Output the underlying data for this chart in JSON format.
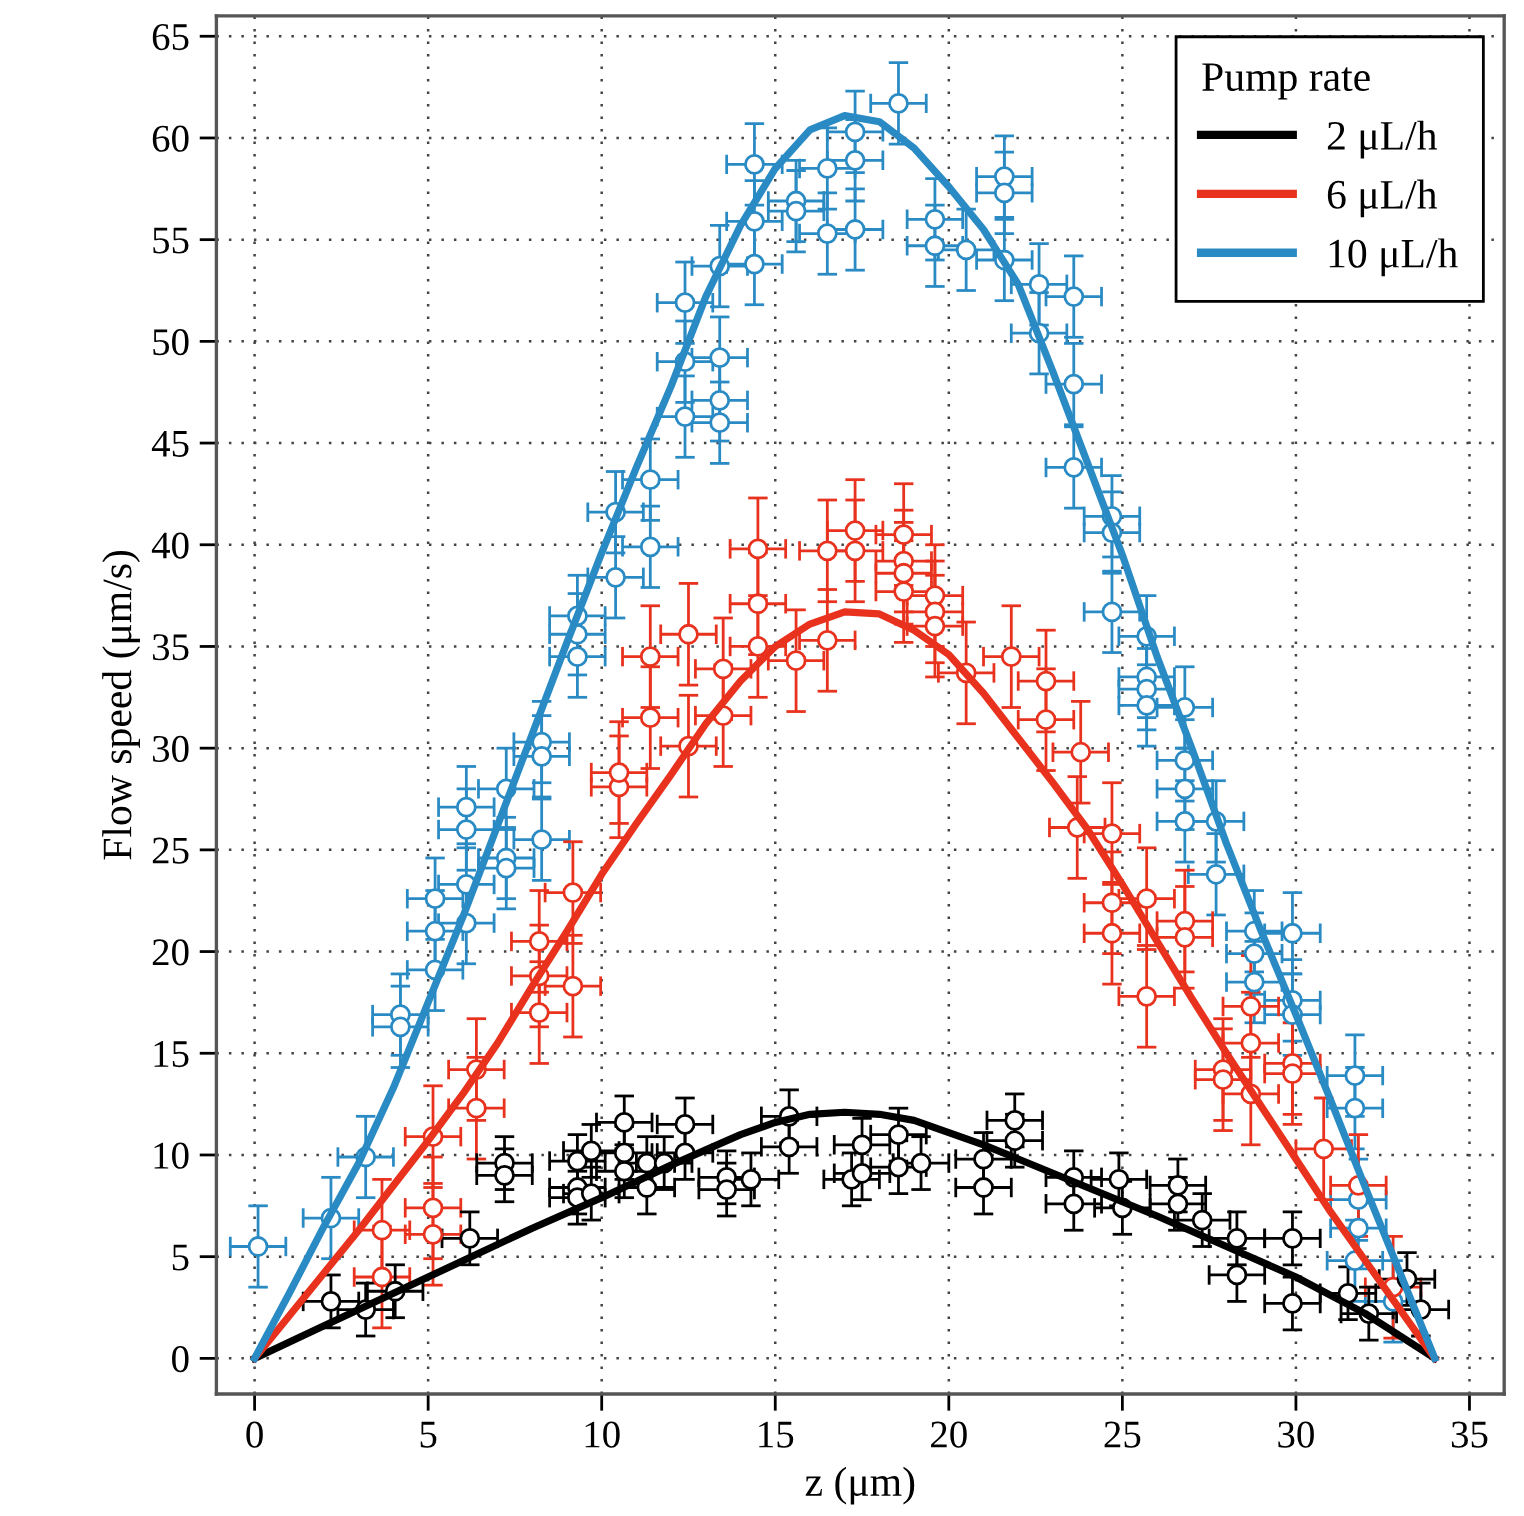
{
  "chart_data": {
    "type": "scatter",
    "xlabel": "z (μm)",
    "ylabel": "Flow speed (μm/s)",
    "legend_title": "Pump rate",
    "legend": "top right",
    "grid": true,
    "marker": "circle",
    "line_style": "solid",
    "xlim": [
      -1.1,
      36
    ],
    "ylim": [
      -1.75,
      66
    ],
    "xticks": [
      0,
      5,
      10,
      15,
      20,
      25,
      30,
      35
    ],
    "yticks": [
      0,
      5,
      10,
      15,
      20,
      25,
      30,
      35,
      40,
      45,
      50,
      55,
      60,
      65
    ],
    "series": [
      {
        "color": "#2a8bc4",
        "x": [
          0.1,
          2.2,
          3.2,
          4.2,
          4.2,
          5.2,
          5.2,
          5.2,
          6.1,
          6.1,
          6.1,
          6.1,
          7.25,
          7.25,
          7.25,
          8.27,
          8.27,
          8.27,
          9.3,
          9.3,
          9.3,
          10.4,
          10.4,
          11.4,
          11.4,
          12.4,
          12.4,
          12.4,
          13.4,
          13.4,
          13.4,
          13.4,
          14.4,
          14.4,
          14.4,
          15.6,
          15.6,
          16.5,
          16.5,
          17.3,
          17.3,
          17.3,
          18.55,
          19.6,
          19.6,
          20.5,
          21.6,
          21.6,
          21.6,
          22.6,
          22.6,
          23.6,
          23.6,
          23.6,
          24.7,
          24.7,
          24.7,
          25.7,
          25.7,
          25.7,
          25.7,
          26.8,
          26.8,
          26.8,
          26.8,
          27.7,
          27.7,
          28.8,
          29.9,
          28.8,
          28.8,
          29.9,
          29.9,
          31.7,
          31.7,
          31.8,
          31.8,
          31.7,
          32.8
        ],
        "values": [
          5.5,
          6.9,
          9.9,
          16.9,
          16.3,
          22.6,
          21.0,
          19.1,
          27.1,
          26.0,
          23.3,
          21.4,
          24.6,
          24.1,
          28.0,
          25.5,
          30.3,
          29.6,
          36.5,
          35.6,
          34.5,
          41.6,
          38.4,
          43.2,
          39.9,
          51.9,
          49.0,
          46.3,
          53.7,
          49.2,
          47.1,
          46.0,
          58.7,
          55.9,
          53.8,
          56.9,
          56.4,
          58.5,
          55.3,
          60.3,
          58.9,
          55.5,
          61.7,
          56.0,
          54.7,
          54.5,
          58.1,
          57.3,
          54.0,
          52.8,
          50.4,
          52.2,
          47.9,
          43.8,
          41.4,
          40.6,
          36.7,
          35.5,
          33.5,
          32.9,
          32.1,
          32.0,
          29.4,
          28.0,
          26.4,
          26.4,
          23.8,
          21.0,
          20.9,
          19.9,
          18.5,
          17.6,
          16.9,
          13.9,
          12.3,
          7.8,
          6.4,
          4.8,
          2.8
        ],
        "errors": [
          2,
          2,
          2,
          2,
          2,
          2,
          2,
          2,
          2,
          2,
          2,
          2,
          2,
          2,
          2,
          2,
          2,
          2,
          2,
          2,
          2,
          2,
          2,
          2,
          2,
          2,
          2,
          2,
          2,
          2,
          2,
          2,
          2,
          2,
          2,
          2,
          2,
          2,
          2,
          2,
          2,
          2,
          2,
          2,
          2,
          2,
          2,
          2,
          2,
          2,
          2,
          2,
          2,
          2,
          2,
          2,
          2,
          2,
          2,
          2,
          2,
          2,
          2,
          2,
          2,
          2,
          2,
          2,
          2,
          2,
          2,
          2,
          2,
          2,
          2,
          2,
          2,
          2,
          2
        ],
        "xerrors": [
          0.8,
          0.8,
          0.8,
          0.8,
          0.8,
          0.8,
          0.8,
          0.8,
          0.8,
          0.8,
          0.8,
          0.8,
          0.8,
          0.8,
          0.8,
          0.8,
          0.8,
          0.8,
          0.8,
          0.8,
          0.8,
          0.8,
          0.8,
          0.8,
          0.8,
          0.8,
          0.8,
          0.8,
          0.8,
          0.8,
          0.8,
          0.8,
          0.8,
          0.8,
          0.8,
          0.8,
          0.8,
          0.8,
          0.8,
          0.8,
          0.8,
          0.8,
          0.8,
          0.8,
          0.8,
          0.8,
          0.8,
          0.8,
          0.8,
          0.8,
          0.8,
          0.8,
          0.8,
          0.8,
          0.8,
          0.8,
          0.8,
          0.8,
          0.8,
          0.8,
          0.8,
          0.8,
          0.8,
          0.8,
          0.8,
          0.8,
          0.8,
          0.8,
          0.8,
          0.8,
          0.8,
          0.8,
          0.8,
          0.8,
          0.8,
          0.8,
          0.8,
          0.8,
          0.8
        ]
      },
      {
        "color": "#e8321e",
        "x": [
          3.67,
          3.67,
          5.14,
          5.14,
          5.14,
          6.39,
          6.39,
          8.2,
          8.2,
          8.2,
          9.17,
          9.17,
          10.5,
          10.5,
          11.4,
          11.4,
          12.5,
          12.5,
          13.5,
          13.5,
          14.5,
          14.5,
          14.5,
          15.6,
          16.5,
          16.5,
          17.3,
          17.3,
          18.7,
          18.7,
          18.7,
          18.7,
          19.6,
          19.6,
          19.6,
          20.5,
          21.8,
          22.8,
          22.8,
          23.8,
          23.7,
          24.7,
          24.7,
          24.7,
          25.7,
          25.7,
          26.8,
          26.8,
          27.9,
          27.9,
          28.7,
          28.7,
          28.7,
          29.9,
          29.9,
          30.8,
          31.8,
          32.8
        ],
        "values": [
          4.0,
          6.3,
          7.4,
          6.1,
          10.9,
          12.3,
          14.2,
          17.0,
          18.8,
          20.5,
          18.3,
          22.9,
          28.1,
          28.8,
          31.5,
          34.5,
          30.1,
          35.6,
          31.6,
          33.9,
          39.8,
          37.1,
          35.0,
          34.3,
          39.7,
          35.3,
          40.7,
          39.7,
          40.5,
          39.2,
          38.6,
          37.7,
          37.5,
          36.7,
          36.0,
          33.7,
          34.5,
          33.3,
          31.4,
          29.8,
          26.1,
          25.8,
          22.4,
          20.9,
          22.6,
          17.8,
          21.5,
          20.7,
          14.2,
          13.7,
          17.3,
          15.5,
          13.0,
          14.5,
          14.0,
          10.3,
          8.5,
          3.5
        ],
        "errors": [
          2.5,
          2.5,
          2.5,
          2.5,
          2.5,
          2.5,
          2.5,
          2.5,
          2.5,
          2.5,
          2.5,
          2.5,
          2.5,
          2.5,
          2.5,
          2.5,
          2.5,
          2.5,
          2.5,
          2.5,
          2.5,
          2.5,
          2.5,
          2.5,
          2.5,
          2.5,
          2.5,
          2.5,
          2.5,
          2.5,
          2.5,
          2.5,
          2.5,
          2.5,
          2.5,
          2.5,
          2.5,
          2.5,
          2.5,
          2.5,
          2.5,
          2.5,
          2.5,
          2.5,
          2.5,
          2.5,
          2.5,
          2.5,
          2.5,
          2.5,
          2.5,
          2.5,
          2.5,
          2.5,
          2.5,
          2.5,
          2.5,
          2.5
        ],
        "xerrors": [
          0.8,
          0.8,
          0.8,
          0.8,
          0.8,
          0.8,
          0.8,
          0.8,
          0.8,
          0.8,
          0.8,
          0.8,
          0.8,
          0.8,
          0.8,
          0.8,
          0.8,
          0.8,
          0.8,
          0.8,
          0.8,
          0.8,
          0.8,
          0.8,
          0.8,
          0.8,
          0.8,
          0.8,
          0.8,
          0.8,
          0.8,
          0.8,
          0.8,
          0.8,
          0.8,
          0.8,
          0.8,
          0.8,
          0.8,
          0.8,
          0.8,
          0.8,
          0.8,
          0.8,
          0.8,
          0.8,
          0.8,
          0.8,
          0.8,
          0.8,
          0.8,
          0.8,
          0.8,
          0.8,
          0.8,
          0.8,
          0.8,
          0.8
        ]
      },
      {
        "color": "#000000",
        "x": [
          2.2,
          3.2,
          4.05,
          6.2,
          7.2,
          7.2,
          9.3,
          9.3,
          9.3,
          9.7,
          9.7,
          10.65,
          10.65,
          10.65,
          11.3,
          11.3,
          11.8,
          12.4,
          12.4,
          13.6,
          13.6,
          14.3,
          15.4,
          15.4,
          17.2,
          17.5,
          17.5,
          18.55,
          18.55,
          19.2,
          21.0,
          21.0,
          21.9,
          21.9,
          23.6,
          23.6,
          24.9,
          25.0,
          26.6,
          26.6,
          27.3,
          28.3,
          28.3,
          29.9,
          29.9,
          31.5,
          32.1,
          33.2,
          33.6
        ],
        "values": [
          2.8,
          2.4,
          3.3,
          5.9,
          9.6,
          9.0,
          9.7,
          8.4,
          7.9,
          10.2,
          8.1,
          11.6,
          10.1,
          9.2,
          9.6,
          8.4,
          9.6,
          11.5,
          10.1,
          8.9,
          8.3,
          8.8,
          11.9,
          10.4,
          8.8,
          10.5,
          9.1,
          11.0,
          9.4,
          9.6,
          9.8,
          8.4,
          11.7,
          10.7,
          8.9,
          7.6,
          8.8,
          7.4,
          8.5,
          7.6,
          6.8,
          5.9,
          4.1,
          5.9,
          2.7,
          3.2,
          2.2,
          3.9,
          2.4
        ],
        "errors": [
          1.3,
          1.3,
          1.3,
          1.3,
          1.3,
          1.3,
          1.3,
          1.3,
          1.3,
          1.3,
          1.3,
          1.3,
          1.3,
          1.3,
          1.3,
          1.3,
          1.3,
          1.3,
          1.3,
          1.3,
          1.3,
          1.3,
          1.3,
          1.3,
          1.3,
          1.3,
          1.3,
          1.3,
          1.3,
          1.3,
          1.3,
          1.3,
          1.3,
          1.3,
          1.3,
          1.3,
          1.3,
          1.3,
          1.3,
          1.3,
          1.3,
          1.3,
          1.3,
          1.3,
          1.3,
          1.3,
          1.3,
          1.3,
          1.3
        ],
        "xerrors": [
          0.8,
          0.8,
          0.8,
          0.8,
          0.8,
          0.8,
          0.8,
          0.8,
          0.8,
          0.8,
          0.8,
          0.8,
          0.8,
          0.8,
          0.8,
          0.8,
          0.8,
          0.8,
          0.8,
          0.8,
          0.8,
          0.8,
          0.8,
          0.8,
          0.8,
          0.8,
          0.8,
          0.8,
          0.8,
          0.8,
          0.8,
          0.8,
          0.8,
          0.8,
          0.8,
          0.8,
          0.8,
          0.8,
          0.8,
          0.8,
          0.8,
          0.8,
          0.8,
          0.8,
          0.8,
          0.8,
          0.8,
          0.8,
          0.8
        ]
      },
      {
        "type": "line",
        "marker": "none",
        "name": "2 μL/h",
        "color": "#000000",
        "x": [
          0,
          2,
          4,
          6,
          8,
          10,
          12,
          14,
          15,
          16,
          17,
          18,
          19,
          20,
          21,
          22,
          23,
          24,
          26,
          28,
          30,
          32,
          34
        ],
        "values": [
          0,
          1.6,
          3.2,
          4.8,
          6.4,
          7.9,
          9.5,
          11.0,
          11.6,
          12.0,
          12.1,
          12.0,
          11.7,
          11.1,
          10.5,
          9.8,
          9.1,
          8.4,
          7.0,
          5.5,
          4.0,
          2.2,
          0
        ]
      },
      {
        "type": "line",
        "marker": "none",
        "name": "6 μL/h",
        "color": "#e8321e",
        "x": [
          0,
          1,
          2,
          3,
          4,
          5,
          6,
          7,
          8,
          9,
          10,
          11,
          12,
          13,
          14,
          15,
          16,
          17,
          18,
          19,
          20,
          21,
          22,
          23,
          24,
          25,
          26,
          27,
          28,
          29,
          30,
          31,
          32,
          33,
          34
        ],
        "values": [
          0,
          2.1,
          4.2,
          6.3,
          8.5,
          10.7,
          13.0,
          15.5,
          18.3,
          21.0,
          23.8,
          26.3,
          28.7,
          31.2,
          33.3,
          35.0,
          36.1,
          36.7,
          36.6,
          35.8,
          34.6,
          32.7,
          30.5,
          28.3,
          26.0,
          23.3,
          20.5,
          17.7,
          15.0,
          12.4,
          9.8,
          7.2,
          4.8,
          2.4,
          0
        ]
      },
      {
        "type": "line",
        "marker": "none",
        "name": "10 μL/h",
        "color": "#2a8bc4",
        "x": [
          0,
          1,
          2,
          3,
          4,
          5,
          6,
          7,
          8,
          9,
          10,
          11,
          12,
          13,
          14,
          15,
          16,
          17,
          18,
          19,
          20,
          21,
          22,
          23,
          24,
          25,
          26,
          27,
          28,
          29,
          30,
          31,
          32,
          33,
          34
        ],
        "values": [
          0,
          3.2,
          6.5,
          9.6,
          13.3,
          17.5,
          21.7,
          26.2,
          30.7,
          35.2,
          39.6,
          43.8,
          47.8,
          52.2,
          55.7,
          58.5,
          60.4,
          61.1,
          60.8,
          59.5,
          57.6,
          55.5,
          52.8,
          48.5,
          44.0,
          39.5,
          34.5,
          30.0,
          25.3,
          21.0,
          16.9,
          12.7,
          8.4,
          4.2,
          0
        ]
      }
    ]
  }
}
